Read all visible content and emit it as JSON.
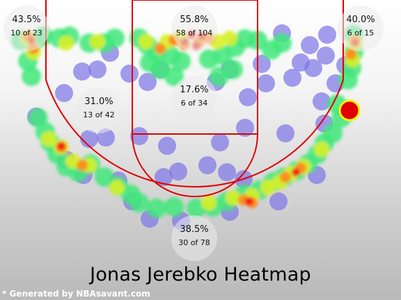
{
  "chart_data": {
    "type": "heatmap",
    "title": "Jonas Jerebko Heatmap",
    "zones": [
      {
        "name": "left-corner-three",
        "pct": "43.5%",
        "made_att": "10 of 23",
        "made": 10,
        "attempts": 23
      },
      {
        "name": "restricted-area",
        "pct": "55.8%",
        "made_att": "58 of 104",
        "made": 58,
        "attempts": 104
      },
      {
        "name": "right-corner-three",
        "pct": "40.0%",
        "made_att": "6 of 15",
        "made": 6,
        "attempts": 15
      },
      {
        "name": "left-mid-range",
        "pct": "31.0%",
        "made_att": "13 of 42",
        "made": 13,
        "attempts": 42
      },
      {
        "name": "paint-non-ra",
        "pct": "17.6%",
        "made_att": "6 of 34",
        "made": 6,
        "attempts": 34
      },
      {
        "name": "above-break-three",
        "pct": "38.5%",
        "made_att": "30 of 78",
        "made": 30,
        "attempts": 78
      }
    ]
  },
  "credit": "* Generated by NBAsavant.com"
}
